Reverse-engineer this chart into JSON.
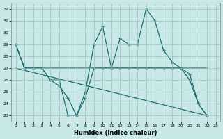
{
  "xlabel": "Humidex (Indice chaleur)",
  "xlim": [
    -0.5,
    23.5
  ],
  "ylim": [
    22.5,
    32.5
  ],
  "yticks": [
    23,
    24,
    25,
    26,
    27,
    28,
    29,
    30,
    31,
    32
  ],
  "xticks": [
    0,
    1,
    2,
    3,
    4,
    5,
    6,
    7,
    8,
    9,
    10,
    11,
    12,
    13,
    14,
    15,
    16,
    17,
    18,
    19,
    20,
    21,
    22,
    23
  ],
  "background_color": "#c8e8e8",
  "grid_color": "#a0c0c0",
  "line_color": "#1a6b6b",
  "line1_x": [
    0,
    1,
    2,
    3,
    4,
    5,
    6,
    7,
    8,
    9,
    10,
    11,
    12,
    13,
    14,
    15,
    16,
    17,
    18,
    19,
    20,
    21,
    22
  ],
  "line1_y": [
    29,
    27,
    27,
    27,
    27,
    27,
    27,
    27,
    27,
    27,
    27,
    27,
    27,
    27,
    27,
    27,
    27,
    27,
    27,
    27,
    27,
    27,
    27
  ],
  "line2_x": [
    0,
    22
  ],
  "line2_y": [
    27,
    23
  ],
  "line3_x": [
    0,
    1,
    2,
    3,
    4,
    5,
    6,
    7,
    8,
    9,
    10,
    11,
    12,
    13,
    14,
    15,
    16,
    17,
    18,
    19,
    20,
    21,
    22
  ],
  "line3_y": [
    29,
    27,
    27,
    27,
    26,
    26,
    23,
    23,
    24.5,
    27,
    27,
    27,
    27,
    27,
    27,
    27,
    27,
    27,
    27,
    27,
    26.5,
    24,
    23
  ],
  "line4_x": [
    0,
    1,
    2,
    3,
    4,
    5,
    6,
    7,
    8,
    9,
    10,
    11,
    12,
    13,
    14,
    15,
    16,
    17,
    18,
    19,
    20,
    21,
    22
  ],
  "line4_y": [
    29,
    27,
    27,
    27,
    26,
    25.5,
    24.5,
    23,
    25,
    29,
    30.5,
    27,
    29.5,
    29,
    29,
    32,
    31,
    28.5,
    27.5,
    27,
    26,
    24,
    23
  ]
}
